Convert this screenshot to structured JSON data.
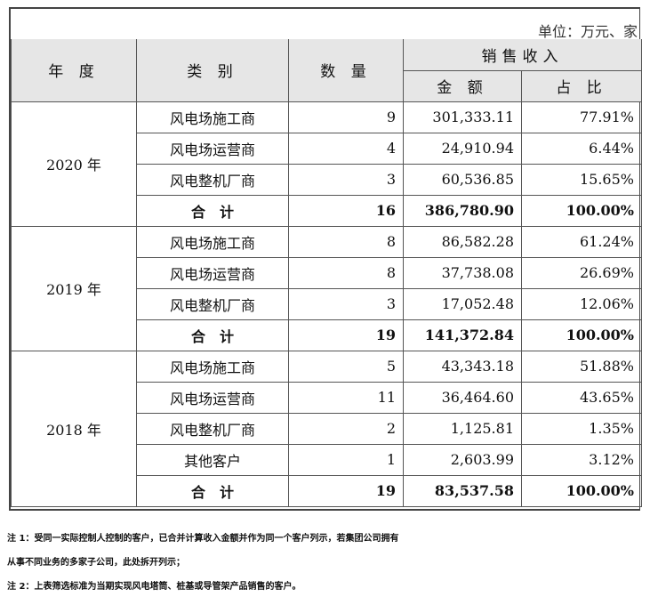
{
  "unit": "单位：万元、家",
  "headers": {
    "year": "年 度",
    "category": "类 别",
    "count": "数 量",
    "revenue": "销售收入",
    "amount": "金 额",
    "share": "占 比"
  },
  "groups": [
    {
      "year": "2020 年",
      "rows": [
        {
          "category": "风电场施工商",
          "count": "9",
          "amount": "301,333.11",
          "share": "77.91%"
        },
        {
          "category": "风电场运营商",
          "count": "4",
          "amount": "24,910.94",
          "share": "6.44%"
        },
        {
          "category": "风电整机厂商",
          "count": "3",
          "amount": "60,536.85",
          "share": "15.65%"
        }
      ],
      "total": {
        "label": "合　计",
        "count": "16",
        "amount": "386,780.90",
        "share": "100.00%"
      }
    },
    {
      "year": "2019 年",
      "rows": [
        {
          "category": "风电场施工商",
          "count": "8",
          "amount": "86,582.28",
          "share": "61.24%"
        },
        {
          "category": "风电场运营商",
          "count": "8",
          "amount": "37,738.08",
          "share": "26.69%"
        },
        {
          "category": "风电整机厂商",
          "count": "3",
          "amount": "17,052.48",
          "share": "12.06%"
        }
      ],
      "total": {
        "label": "合　计",
        "count": "19",
        "amount": "141,372.84",
        "share": "100.00%"
      }
    },
    {
      "year": "2018 年",
      "rows": [
        {
          "category": "风电场施工商",
          "count": "5",
          "amount": "43,343.18",
          "share": "51.88%"
        },
        {
          "category": "风电场运营商",
          "count": "11",
          "amount": "36,464.60",
          "share": "43.65%"
        },
        {
          "category": "风电整机厂商",
          "count": "2",
          "amount": "1,125.81",
          "share": "1.35%"
        },
        {
          "category": "其他客户",
          "count": "1",
          "amount": "2,603.99",
          "share": "3.12%"
        }
      ],
      "total": {
        "label": "合　计",
        "count": "19",
        "amount": "83,537.58",
        "share": "100.00%"
      }
    }
  ],
  "notes": [
    "注 1：受同一实际控制人控制的客户，已合并计算收入金额并作为同一个客户列示，若集团公司拥有",
    "从事不同业务的多家子公司，此处拆开列示；",
    "注 2：上表筛选标准为当期实现风电塔筒、桩基或导管架产品销售的客户。"
  ]
}
